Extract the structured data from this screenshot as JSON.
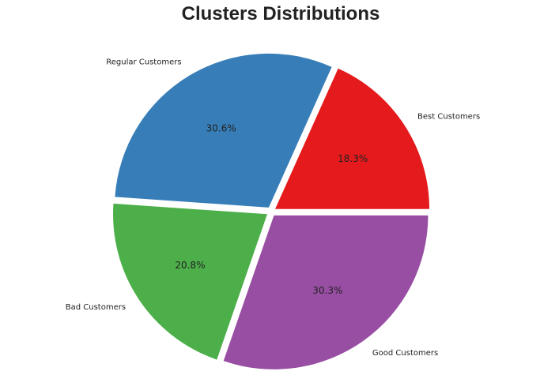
{
  "chart_data": {
    "type": "pie",
    "title": "Clusters Distributions",
    "slices": [
      {
        "label": "Best Customers",
        "value": 18.3,
        "pct_label": "18.3%",
        "color": "#e41a1c"
      },
      {
        "label": "Regular Customers",
        "value": 30.6,
        "pct_label": "30.6%",
        "color": "#377eb8"
      },
      {
        "label": "Bad Customers",
        "value": 20.8,
        "pct_label": "20.8%",
        "color": "#4daf4a"
      },
      {
        "label": "Good Customers",
        "value": 30.3,
        "pct_label": "30.3%",
        "color": "#984ea3"
      }
    ],
    "start_angle_deg": 0,
    "direction": "counterclockwise",
    "exploded": true,
    "legend": "none"
  }
}
